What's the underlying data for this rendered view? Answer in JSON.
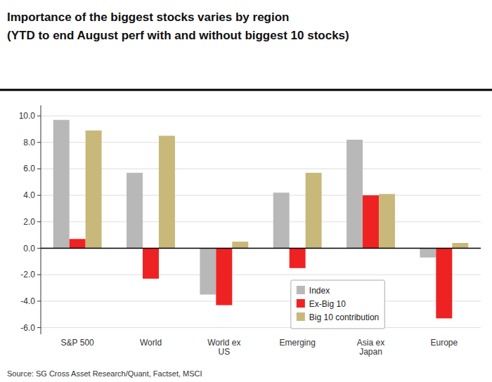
{
  "chart_data": {
    "type": "bar",
    "title": "Importance of the biggest stocks varies by region",
    "subtitle": "(YTD to end August perf with and without biggest 10 stocks)",
    "annotations": [
      "Source: SG Cross Asset Research/Quant, Factset, MSCI"
    ],
    "categories": [
      "S&P 500",
      "World",
      "World ex\nUS",
      "Emerging",
      "Asia ex\nJapan",
      "Europe"
    ],
    "series": [
      {
        "name": "Index",
        "color": "#b8b8b8",
        "values": [
          9.7,
          5.7,
          -3.5,
          4.2,
          8.2,
          -0.7
        ]
      },
      {
        "name": "Ex-Big 10",
        "color": "#ee2222",
        "values": [
          0.7,
          -2.3,
          -4.3,
          -1.5,
          4.0,
          -5.3
        ]
      },
      {
        "name": "Big 10 contribution",
        "color": "#c8b87a",
        "values": [
          8.9,
          8.5,
          0.5,
          5.7,
          4.1,
          0.4
        ]
      }
    ],
    "ylim": [
      -6.5,
      10.8
    ],
    "yticks": [
      {
        "value": -6.0,
        "label": "-6.0"
      },
      {
        "value": -4.0,
        "label": "-4.0"
      },
      {
        "value": -2.0,
        "label": "-2.0"
      },
      {
        "value": 0.0,
        "label": "0.0"
      },
      {
        "value": 2.0,
        "label": "2.0"
      },
      {
        "value": 4.0,
        "label": "4.0"
      },
      {
        "value": 6.0,
        "label": "6.0"
      },
      {
        "value": 8.0,
        "label": "8.0"
      },
      {
        "value": 10.0,
        "label": "10.0"
      }
    ],
    "grid": true,
    "legend": "bottom"
  }
}
